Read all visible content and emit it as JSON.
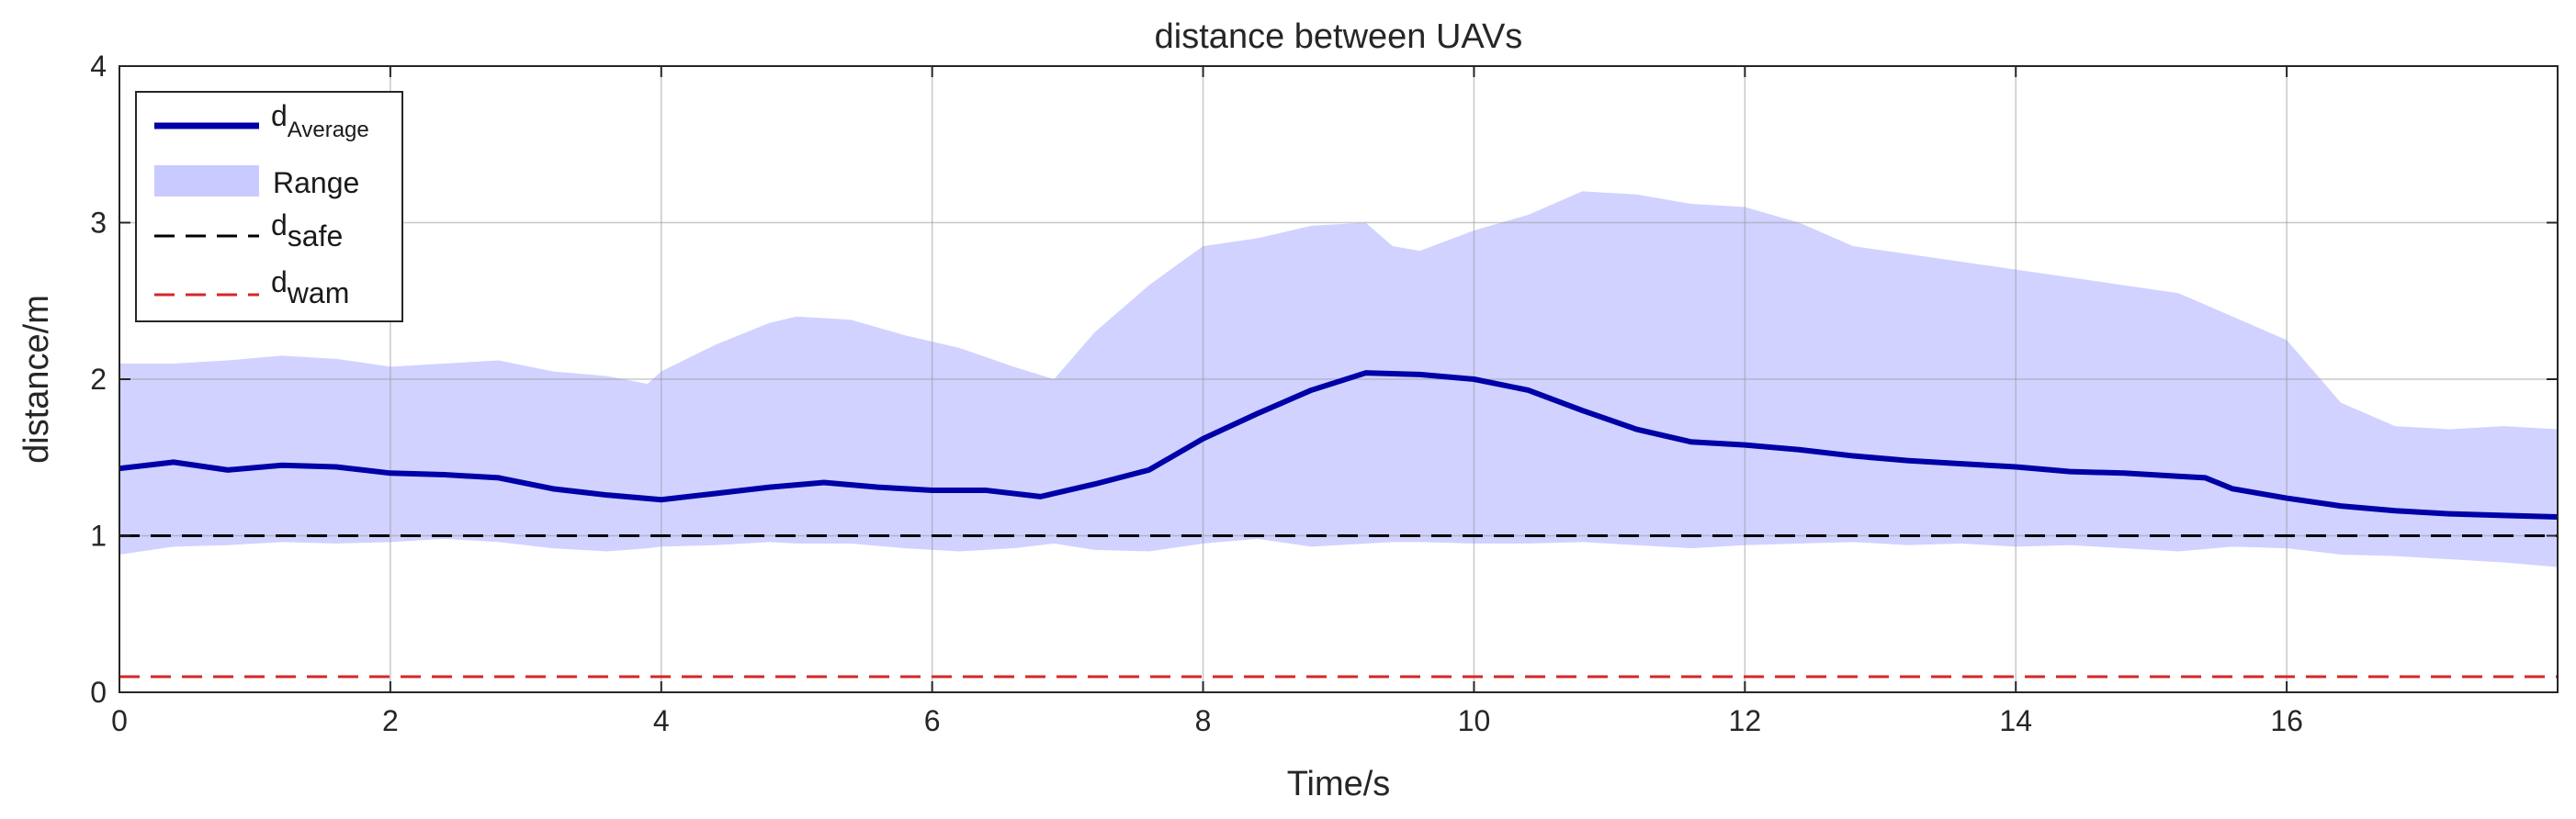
{
  "chart_data": {
    "type": "line",
    "title": "distance between UAVs",
    "xlabel": "Time/s",
    "ylabel": "distance/m",
    "xlim": [
      0,
      18
    ],
    "ylim": [
      0,
      4
    ],
    "xticks": [
      0,
      2,
      4,
      6,
      8,
      10,
      12,
      14,
      16
    ],
    "yticks": [
      0,
      1,
      2,
      3,
      4
    ],
    "grid": true,
    "legend_position": "top-left",
    "series": [
      {
        "name_base": "d",
        "name_sub": "Average",
        "style": "solid",
        "color": "#0000a8",
        "x": [
          0,
          0.4,
          0.8,
          1.2,
          1.6,
          2.0,
          2.4,
          2.8,
          3.2,
          3.6,
          4.0,
          4.4,
          4.8,
          5.2,
          5.6,
          6.0,
          6.4,
          6.8,
          7.2,
          7.6,
          8.0,
          8.4,
          8.8,
          9.2,
          9.6,
          10.0,
          10.4,
          10.8,
          11.2,
          11.6,
          12.0,
          12.4,
          12.8,
          13.2,
          13.6,
          14.0,
          14.4,
          14.8,
          15.2,
          15.4,
          15.6,
          16.0,
          16.4,
          16.8,
          17.2,
          17.6,
          18.0
        ],
        "y": [
          1.43,
          1.47,
          1.42,
          1.45,
          1.44,
          1.4,
          1.39,
          1.37,
          1.3,
          1.26,
          1.23,
          1.27,
          1.31,
          1.34,
          1.31,
          1.29,
          1.29,
          1.25,
          1.33,
          1.42,
          1.62,
          1.78,
          1.93,
          2.04,
          2.03,
          2.0,
          1.93,
          1.8,
          1.68,
          1.6,
          1.58,
          1.55,
          1.51,
          1.48,
          1.46,
          1.44,
          1.41,
          1.4,
          1.38,
          1.37,
          1.3,
          1.24,
          1.19,
          1.16,
          1.14,
          1.13,
          1.12
        ]
      },
      {
        "name": "Range",
        "style": "band",
        "color": "#c9caff",
        "x": [
          0,
          0.4,
          0.8,
          1.2,
          1.6,
          2.0,
          2.4,
          2.8,
          3.2,
          3.6,
          3.9,
          4.0,
          4.4,
          4.8,
          5.0,
          5.4,
          5.8,
          6.2,
          6.6,
          6.9,
          7.2,
          7.6,
          8.0,
          8.4,
          8.8,
          9.2,
          9.4,
          9.6,
          10.0,
          10.4,
          10.8,
          11.2,
          11.6,
          12.0,
          12.4,
          12.8,
          13.2,
          13.6,
          14.0,
          14.4,
          14.8,
          15.2,
          15.6,
          16.0,
          16.4,
          16.8,
          17.2,
          17.6,
          18.0
        ],
        "upper": [
          2.1,
          2.1,
          2.12,
          2.15,
          2.13,
          2.08,
          2.1,
          2.12,
          2.05,
          2.02,
          1.97,
          2.05,
          2.22,
          2.36,
          2.4,
          2.38,
          2.28,
          2.2,
          2.08,
          2.0,
          2.3,
          2.6,
          2.85,
          2.9,
          2.98,
          3.0,
          2.85,
          2.82,
          2.95,
          3.05,
          3.2,
          3.18,
          3.12,
          3.1,
          3.0,
          2.85,
          2.8,
          2.75,
          2.7,
          2.65,
          2.6,
          2.55,
          2.4,
          2.25,
          1.85,
          1.7,
          1.68,
          1.7,
          1.68
        ],
        "lower": [
          0.88,
          0.93,
          0.94,
          0.96,
          0.95,
          0.96,
          0.98,
          0.96,
          0.92,
          0.9,
          0.92,
          0.93,
          0.94,
          0.96,
          0.95,
          0.95,
          0.92,
          0.9,
          0.92,
          0.95,
          0.91,
          0.9,
          0.95,
          0.98,
          0.93,
          0.95,
          0.96,
          0.96,
          0.95,
          0.95,
          0.96,
          0.94,
          0.92,
          0.94,
          0.95,
          0.96,
          0.94,
          0.95,
          0.93,
          0.94,
          0.92,
          0.9,
          0.93,
          0.92,
          0.88,
          0.87,
          0.85,
          0.83,
          0.8
        ]
      },
      {
        "name_base": "d",
        "name_sub": "safe",
        "style": "dashed",
        "color": "#000000",
        "x": [
          0,
          18
        ],
        "y": [
          1.0,
          1.0
        ]
      },
      {
        "name_base": "d",
        "name_sub": "wam",
        "style": "dashed",
        "color": "#d62728",
        "x": [
          0,
          18
        ],
        "y": [
          0.1,
          0.1
        ]
      }
    ]
  }
}
